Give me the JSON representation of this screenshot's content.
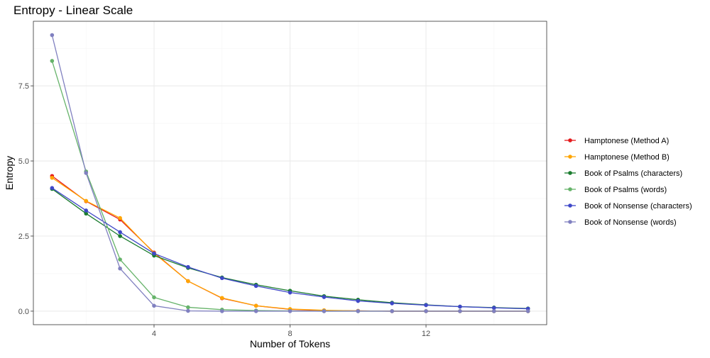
{
  "chart_data": {
    "type": "line",
    "title": "Entropy - Linear Scale",
    "xlabel": "Number of Tokens",
    "ylabel": "Entropy",
    "xlim": [
      0.45,
      15.55
    ],
    "ylim": [
      -0.45,
      9.65
    ],
    "x_ticks": [
      4,
      8,
      12
    ],
    "x_tick_labels": [
      "4",
      "8",
      "12"
    ],
    "y_ticks": [
      0,
      2.5,
      5,
      7.5
    ],
    "y_tick_labels": [
      "0.0",
      "2.5",
      "5.0",
      "7.5"
    ],
    "grid": true,
    "legend_position": "right",
    "x": [
      1,
      2,
      3,
      4,
      5,
      6,
      7,
      8,
      9,
      10,
      11,
      12,
      13,
      14,
      15
    ],
    "series": [
      {
        "name": "Hamptonese (Method A)",
        "color": "#e41a1c",
        "values": [
          4.5,
          3.66,
          3.05,
          1.95,
          1.0,
          0.43,
          0.18,
          0.06,
          0.02,
          0.01,
          0.0,
          0.0,
          0.0,
          0.0,
          0.0
        ]
      },
      {
        "name": "Hamptonese (Method B)",
        "color": "#ffa500",
        "values": [
          4.44,
          3.67,
          3.1,
          1.93,
          1.0,
          0.44,
          0.18,
          0.07,
          0.03,
          0.01,
          0.0,
          0.0,
          0.0,
          0.0,
          0.0
        ]
      },
      {
        "name": "Book of Psalms (characters)",
        "color": "#1b7c2f",
        "values": [
          4.07,
          3.25,
          2.5,
          1.85,
          1.44,
          1.12,
          0.88,
          0.68,
          0.5,
          0.38,
          0.28,
          0.21,
          0.15,
          0.12,
          0.09
        ]
      },
      {
        "name": "Book of Psalms (words)",
        "color": "#66b36a",
        "values": [
          8.33,
          4.65,
          1.72,
          0.46,
          0.13,
          0.05,
          0.02,
          0.01,
          0.0,
          0.0,
          0.0,
          0.0,
          0.0,
          0.0,
          0.0
        ]
      },
      {
        "name": "Book of Nonsense (characters)",
        "color": "#3f48c8",
        "values": [
          4.1,
          3.35,
          2.63,
          1.92,
          1.47,
          1.1,
          0.84,
          0.62,
          0.47,
          0.34,
          0.26,
          0.2,
          0.15,
          0.11,
          0.08
        ]
      },
      {
        "name": "Book of Nonsense (words)",
        "color": "#8080c0",
        "values": [
          9.19,
          4.6,
          1.42,
          0.18,
          0.01,
          0.0,
          0.0,
          0.0,
          0.0,
          0.0,
          0.0,
          0.0,
          0.0,
          0.0,
          0.0
        ]
      }
    ]
  }
}
